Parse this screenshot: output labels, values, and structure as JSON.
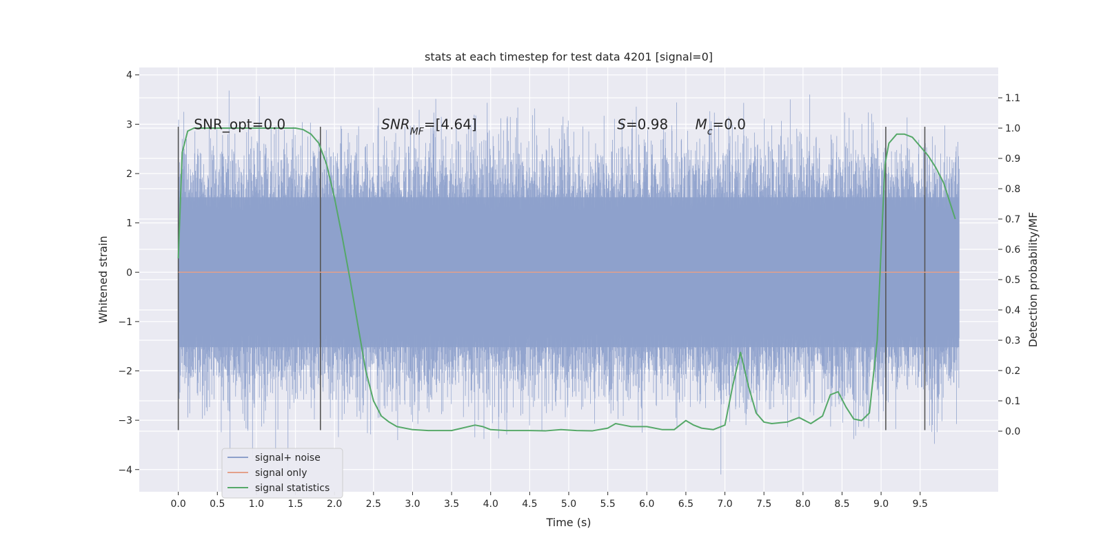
{
  "chart_data": {
    "type": "line",
    "title": "stats at each timestep for test data 4201 [signal=0]",
    "xlabel": "Time (s)",
    "ylabel_left": "Whitened strain",
    "ylabel_right": "Detection probability/MF",
    "xlim": [
      -0.5,
      10.5
    ],
    "ylim_left": [
      -4.45,
      4.15
    ],
    "ylim_right": [
      -0.2,
      1.2
    ],
    "x_ticks": [
      0.0,
      0.5,
      1.0,
      1.5,
      2.0,
      2.5,
      3.0,
      3.5,
      4.0,
      4.5,
      5.0,
      5.5,
      6.0,
      6.5,
      7.0,
      7.5,
      8.0,
      8.5,
      9.0,
      9.5
    ],
    "x_tick_labels": [
      "0.0",
      "0.5",
      "1.0",
      "1.5",
      "2.0",
      "2.5",
      "3.0",
      "3.5",
      "4.0",
      "4.5",
      "5.0",
      "5.5",
      "6.0",
      "6.5",
      "7.0",
      "7.5",
      "8.0",
      "8.5",
      "9.0",
      "9.5"
    ],
    "y_left_ticks": [
      -4,
      -3,
      -2,
      -1,
      0,
      1,
      2,
      3,
      4
    ],
    "y_left_tick_labels": [
      "−4",
      "−3",
      "−2",
      "−1",
      "0",
      "1",
      "2",
      "3",
      "4"
    ],
    "y_right_ticks": [
      0.0,
      0.1,
      0.2,
      0.3,
      0.4,
      0.5,
      0.6,
      0.7,
      0.8,
      0.9,
      1.0,
      1.1
    ],
    "y_right_tick_labels": [
      "0.0",
      "0.1",
      "0.2",
      "0.3",
      "0.4",
      "0.5",
      "0.6",
      "0.7",
      "0.8",
      "0.9",
      "1.0",
      "1.1"
    ],
    "grid": true,
    "legend_position": "lower-left",
    "noise": {
      "x_range": [
        0.0,
        10.0
      ],
      "band_envelope": 1.6,
      "spike_max": 3.8,
      "spike_min": -4.1
    },
    "annotations": [
      {
        "x": 0.2,
        "y": 3.0,
        "parts": [
          {
            "text": "SNR_opt=0.0"
          }
        ]
      },
      {
        "x": 2.6,
        "y": 3.0,
        "parts": [
          {
            "text": "SNR",
            "style": "italic"
          },
          {
            "text": "MF",
            "style": "italic",
            "sub": true
          },
          {
            "text": "=[4.64]"
          }
        ]
      },
      {
        "x": 5.62,
        "y": 3.0,
        "parts": [
          {
            "text": "S",
            "style": "italic"
          },
          {
            "text": "=0.98"
          }
        ]
      },
      {
        "x": 6.62,
        "y": 3.0,
        "parts": [
          {
            "text": "M",
            "style": "italic"
          },
          {
            "text": "c",
            "style": "italic",
            "sub": true
          },
          {
            "text": "=0.0"
          }
        ]
      }
    ],
    "vertical_lines": {
      "x": [
        0.0,
        1.82,
        9.06,
        9.56
      ],
      "y_range": [
        -3.2,
        2.95
      ],
      "color": "#555555"
    },
    "series": [
      {
        "name": "signal+ noise",
        "color": "#8da0cb"
      },
      {
        "name": "signal only",
        "color": "#e3a08a",
        "x": [
          0.0,
          10.0
        ],
        "y": [
          0.0,
          0.0
        ]
      },
      {
        "name": "signal statistics",
        "axis": "right",
        "color": "#55a868",
        "x": [
          0.0,
          0.05,
          0.12,
          0.2,
          0.3,
          0.5,
          0.8,
          1.2,
          1.5,
          1.6,
          1.7,
          1.8,
          1.9,
          2.0,
          2.1,
          2.2,
          2.3,
          2.4,
          2.5,
          2.6,
          2.7,
          2.8,
          3.0,
          3.2,
          3.5,
          3.8,
          3.9,
          4.0,
          4.2,
          4.5,
          4.7,
          4.9,
          5.1,
          5.3,
          5.5,
          5.6,
          5.7,
          5.8,
          6.0,
          6.2,
          6.35,
          6.5,
          6.6,
          6.7,
          6.85,
          7.0,
          7.1,
          7.2,
          7.3,
          7.4,
          7.5,
          7.6,
          7.8,
          7.95,
          8.1,
          8.25,
          8.35,
          8.45,
          8.55,
          8.65,
          8.75,
          8.85,
          8.95,
          9.0,
          9.05,
          9.1,
          9.2,
          9.3,
          9.4,
          9.5,
          9.6,
          9.7,
          9.8,
          9.9,
          9.95
        ],
        "y": [
          0.57,
          0.92,
          0.99,
          1.0,
          1.0,
          1.0,
          1.0,
          1.0,
          1.0,
          0.995,
          0.98,
          0.95,
          0.88,
          0.77,
          0.64,
          0.5,
          0.35,
          0.2,
          0.1,
          0.05,
          0.03,
          0.015,
          0.005,
          0.002,
          0.002,
          0.02,
          0.015,
          0.005,
          0.002,
          0.002,
          0.001,
          0.005,
          0.002,
          0.001,
          0.01,
          0.025,
          0.02,
          0.015,
          0.015,
          0.005,
          0.005,
          0.035,
          0.02,
          0.01,
          0.005,
          0.02,
          0.15,
          0.26,
          0.15,
          0.06,
          0.03,
          0.025,
          0.03,
          0.045,
          0.025,
          0.05,
          0.12,
          0.13,
          0.08,
          0.04,
          0.035,
          0.06,
          0.3,
          0.6,
          0.88,
          0.95,
          0.98,
          0.98,
          0.97,
          0.94,
          0.91,
          0.87,
          0.82,
          0.74,
          0.7
        ]
      }
    ]
  }
}
